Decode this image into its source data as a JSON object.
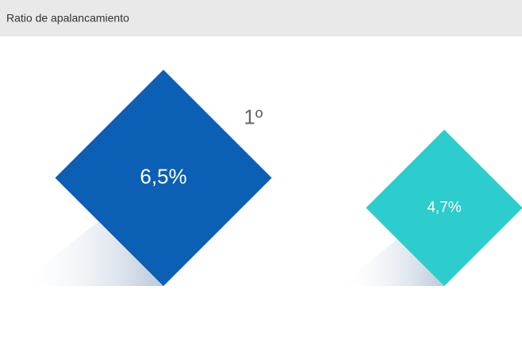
{
  "chart_data": {
    "type": "diamond",
    "title": "Ratio de apalancamiento",
    "values": [
      6.5,
      4.7
    ],
    "value_labels": [
      "6,5%",
      "4,7%"
    ],
    "colors": [
      "#0b5fb4",
      "#2dcccd"
    ],
    "annotation": "1º"
  }
}
